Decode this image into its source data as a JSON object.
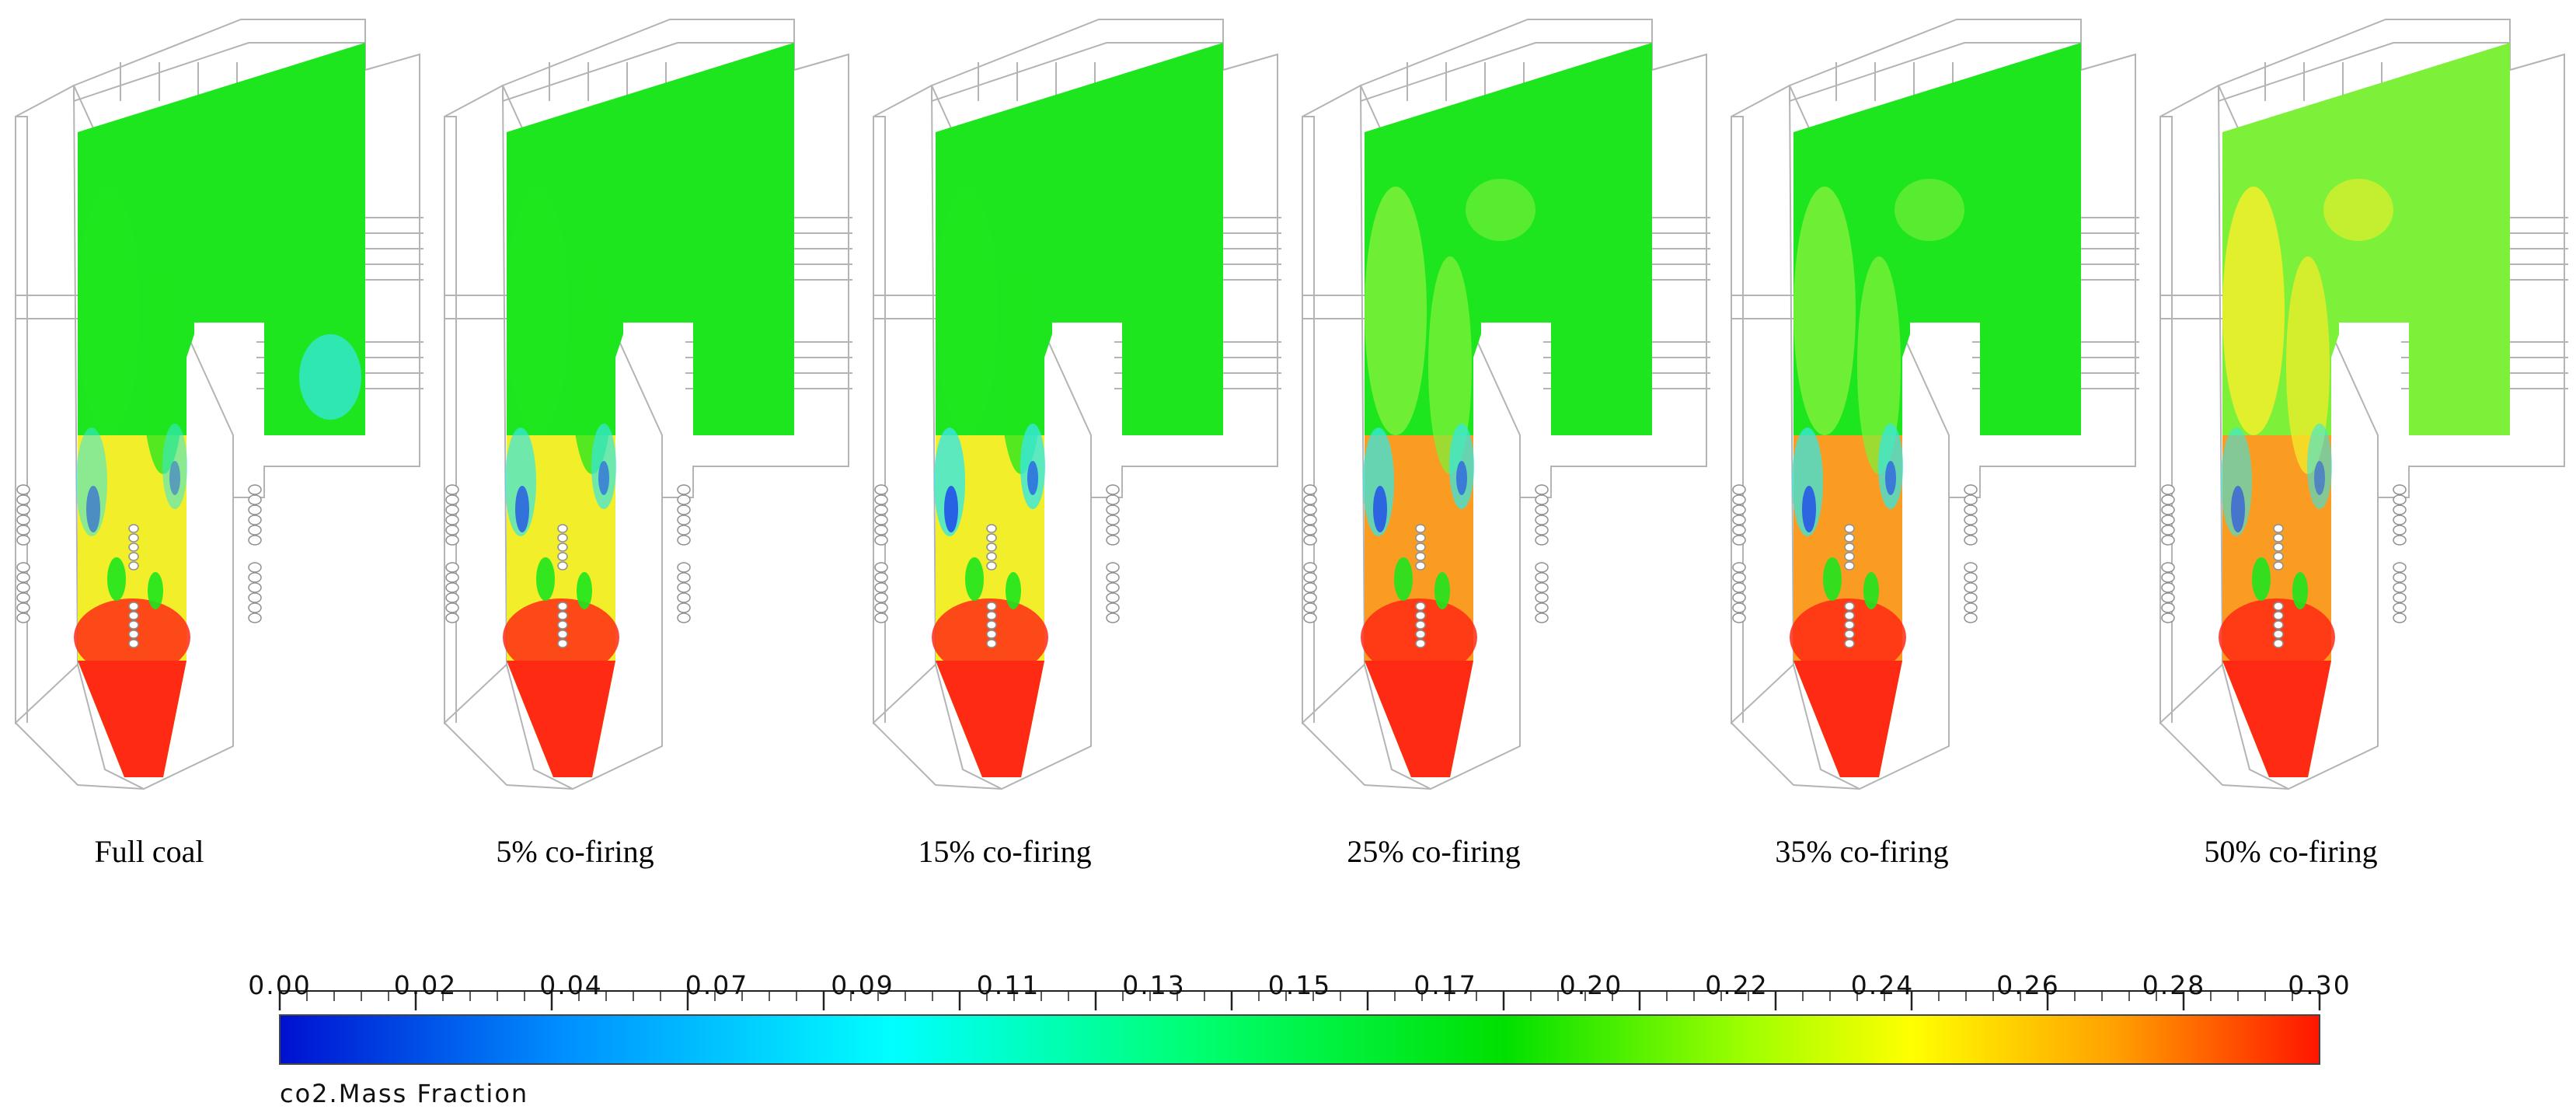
{
  "panels": [
    {
      "label": "Full coal"
    },
    {
      "label": "5% co-firing"
    },
    {
      "label": "15% co-firing"
    },
    {
      "label": "25% co-firing"
    },
    {
      "label": "35% co-firing"
    },
    {
      "label": "50% co-firing"
    }
  ],
  "colorbar": {
    "title": "co2.Mass Fraction",
    "ticks": [
      "0.00",
      "0.02",
      "0.04",
      "0.07",
      "0.09",
      "0.11",
      "0.13",
      "0.15",
      "0.17",
      "0.20",
      "0.22",
      "0.24",
      "0.26",
      "0.28",
      "0.30"
    ],
    "stops": [
      "#0010d0",
      "#0090ff",
      "#00ffff",
      "#00ff70",
      "#00e000",
      "#a0ff00",
      "#ffff00",
      "#ffa000",
      "#ff1500"
    ]
  },
  "colors": {
    "blue": "#1a3ff0",
    "cyan": "#36e7e2",
    "green": "#1ee61e",
    "light_green": "#7df03a",
    "yellow": "#f2ee2a",
    "orange": "#fb9c22",
    "red": "#ff2a14"
  }
}
